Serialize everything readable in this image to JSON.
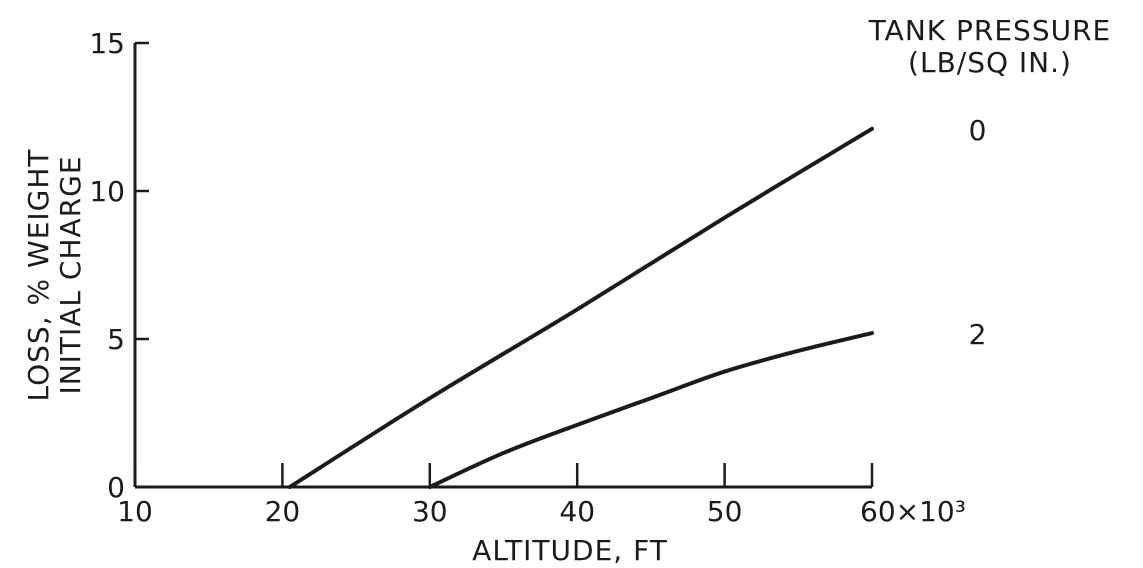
{
  "chart_data": {
    "type": "line",
    "xlabel": "ALTITUDE, FT",
    "ylabel_line1": "LOSS, % WEIGHT",
    "ylabel_line2": "INITIAL CHARGE",
    "xlim": [
      10,
      60
    ],
    "ylim": [
      0,
      15
    ],
    "x_ticks": [
      10,
      20,
      30,
      40,
      50,
      60
    ],
    "x_tick_labels": [
      "10",
      "20",
      "30",
      "40",
      "50",
      "60×10³"
    ],
    "y_ticks": [
      0,
      5,
      10,
      15
    ],
    "y_tick_labels": [
      "0",
      "5",
      "10",
      "15"
    ],
    "legend_title_line1": "TANK PRESSURE",
    "legend_title_line2": "(LB/SQ IN.)",
    "legend_placement": "right",
    "grid": false,
    "line_color": "#1b1b1b",
    "series": [
      {
        "name": "0",
        "x": [
          20.5,
          30,
          40,
          50,
          60
        ],
        "y": [
          0,
          3.0,
          6.0,
          9.1,
          12.1
        ]
      },
      {
        "name": "2",
        "x": [
          30,
          35,
          40,
          45,
          50,
          55,
          60
        ],
        "y": [
          0,
          1.15,
          2.1,
          3.0,
          3.9,
          4.6,
          5.2
        ]
      }
    ]
  }
}
